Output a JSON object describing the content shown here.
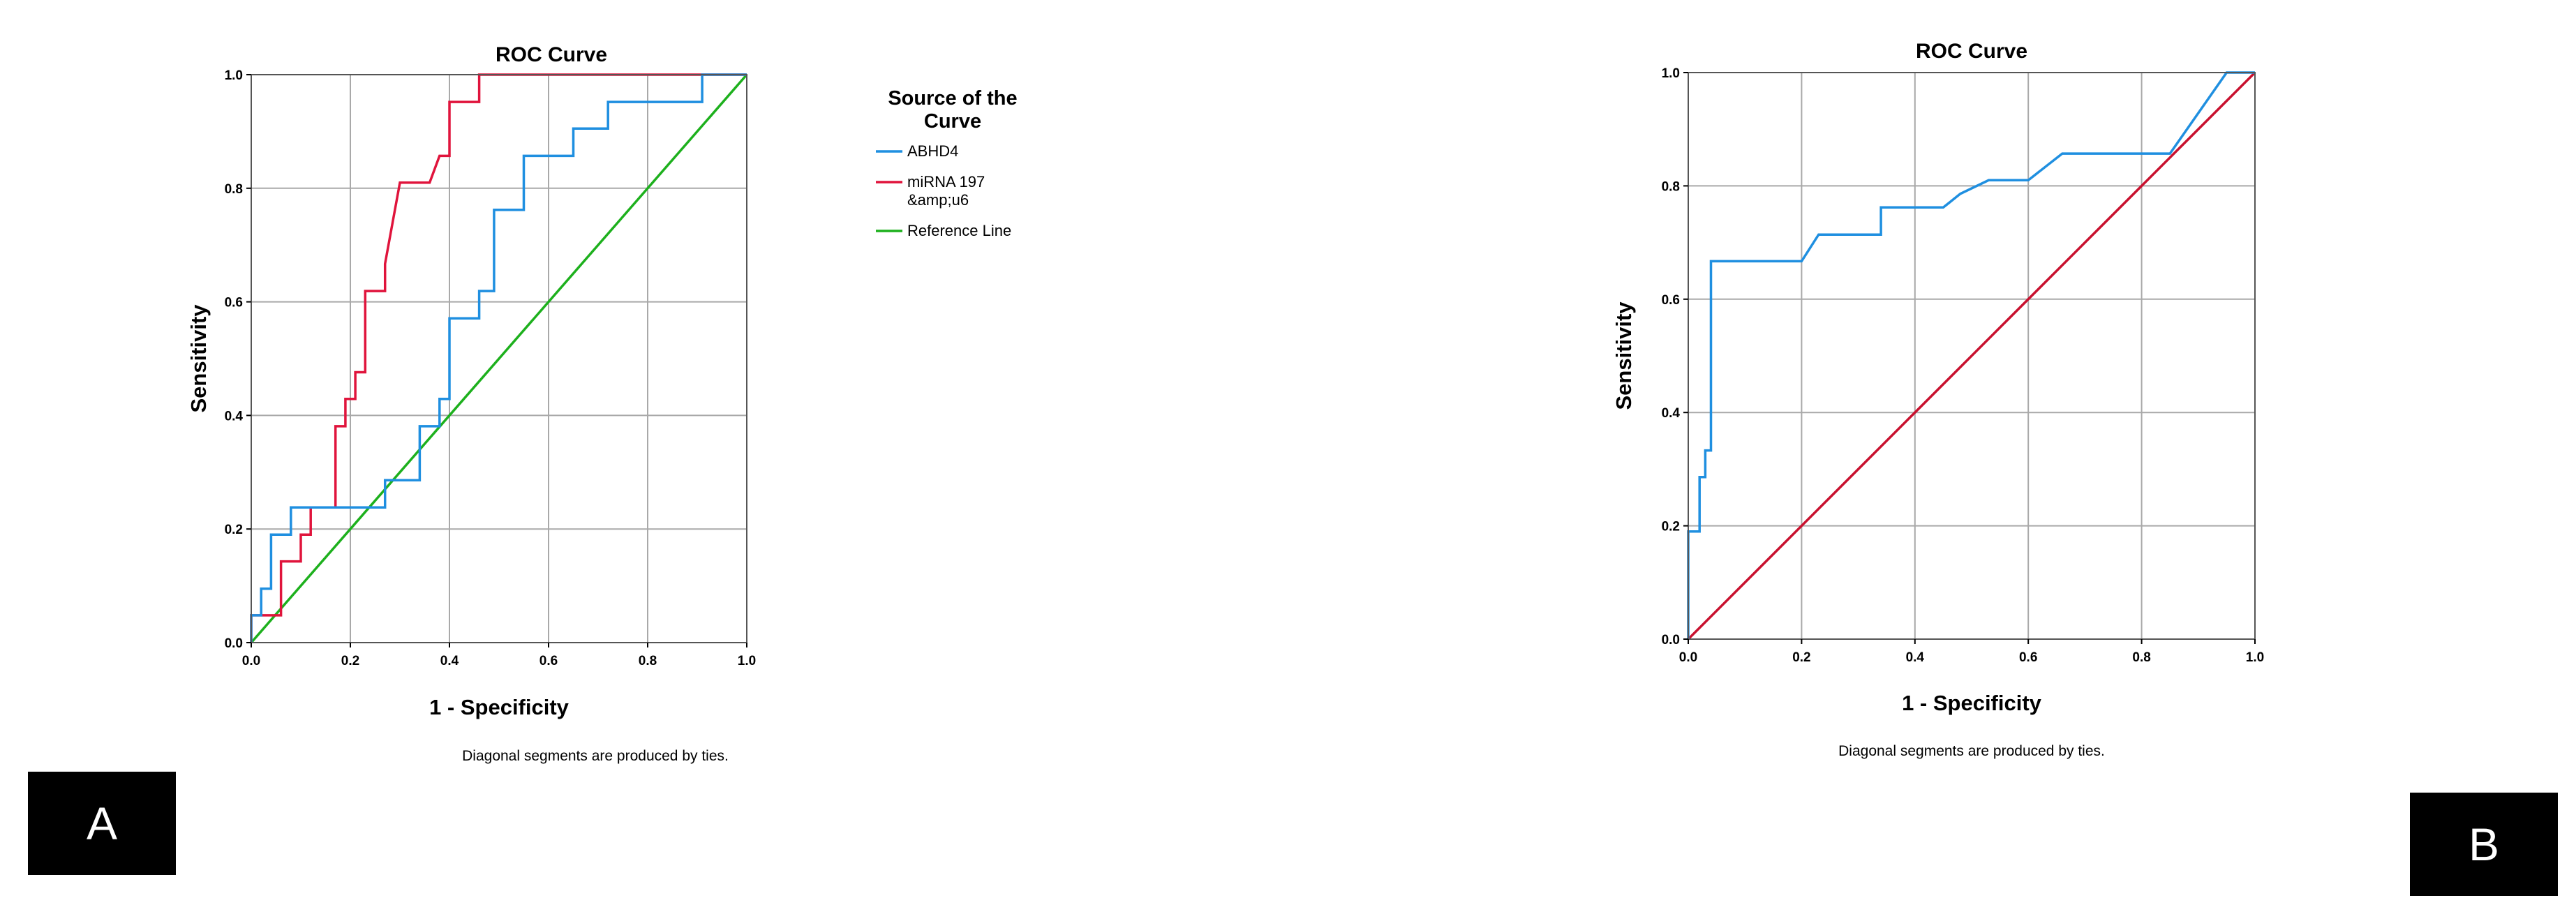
{
  "chart_data": [
    {
      "type": "line",
      "title": "ROC Curve",
      "xlabel": "1 - Specificity",
      "ylabel": "Sensitivity",
      "xlim": [
        0,
        1
      ],
      "ylim": [
        0,
        1
      ],
      "xticks": [
        "0.0",
        "0.2",
        "0.4",
        "0.6",
        "0.8",
        "1.0"
      ],
      "yticks": [
        "0.0",
        "0.2",
        "0.4",
        "0.6",
        "0.8",
        "1.0"
      ],
      "grid": true,
      "note": "Diagonal segments are produced by ties.",
      "panel_label": "A",
      "legend": {
        "title_lines": [
          "Source of the",
          "Curve"
        ],
        "position": "right"
      },
      "series": [
        {
          "name": "ABHD4",
          "label_lines": [
            "ABHD4"
          ],
          "color": "#1f8fe0",
          "points": [
            [
              0,
              0
            ],
            [
              0,
              0.048
            ],
            [
              0.02,
              0.048
            ],
            [
              0.02,
              0.095
            ],
            [
              0.04,
              0.095
            ],
            [
              0.04,
              0.19
            ],
            [
              0.08,
              0.19
            ],
            [
              0.08,
              0.238
            ],
            [
              0.27,
              0.238
            ],
            [
              0.27,
              0.286
            ],
            [
              0.34,
              0.286
            ],
            [
              0.34,
              0.381
            ],
            [
              0.38,
              0.381
            ],
            [
              0.38,
              0.429
            ],
            [
              0.4,
              0.429
            ],
            [
              0.4,
              0.571
            ],
            [
              0.46,
              0.571
            ],
            [
              0.46,
              0.619
            ],
            [
              0.49,
              0.619
            ],
            [
              0.49,
              0.762
            ],
            [
              0.55,
              0.762
            ],
            [
              0.55,
              0.857
            ],
            [
              0.65,
              0.857
            ],
            [
              0.65,
              0.905
            ],
            [
              0.72,
              0.905
            ],
            [
              0.72,
              0.952
            ],
            [
              0.91,
              0.952
            ],
            [
              0.91,
              1.0
            ],
            [
              1.0,
              1.0
            ]
          ]
        },
        {
          "name": "miRNA 197 &amp;u6",
          "label_lines": [
            "miRNA 197",
            "&amp;u6"
          ],
          "color": "#e0143c",
          "points": [
            [
              0,
              0
            ],
            [
              0,
              0.048
            ],
            [
              0.06,
              0.048
            ],
            [
              0.06,
              0.143
            ],
            [
              0.1,
              0.143
            ],
            [
              0.1,
              0.19
            ],
            [
              0.12,
              0.19
            ],
            [
              0.12,
              0.238
            ],
            [
              0.17,
              0.238
            ],
            [
              0.17,
              0.381
            ],
            [
              0.19,
              0.381
            ],
            [
              0.19,
              0.429
            ],
            [
              0.21,
              0.429
            ],
            [
              0.21,
              0.476
            ],
            [
              0.23,
              0.476
            ],
            [
              0.23,
              0.619
            ],
            [
              0.27,
              0.619
            ],
            [
              0.27,
              0.667
            ],
            [
              0.3,
              0.81
            ],
            [
              0.36,
              0.81
            ],
            [
              0.38,
              0.857
            ],
            [
              0.4,
              0.857
            ],
            [
              0.4,
              0.952
            ],
            [
              0.46,
              0.952
            ],
            [
              0.46,
              1.0
            ],
            [
              1.0,
              1.0
            ]
          ]
        },
        {
          "name": "Reference Line",
          "label_lines": [
            "Reference Line"
          ],
          "color": "#1db01d",
          "points": [
            [
              0,
              0
            ],
            [
              1,
              1
            ]
          ]
        }
      ]
    },
    {
      "type": "line",
      "title": "ROC Curve",
      "xlabel": "1 - Specificity",
      "ylabel": "Sensitivity",
      "xlim": [
        0,
        1
      ],
      "ylim": [
        0,
        1
      ],
      "xticks": [
        "0.0",
        "0.2",
        "0.4",
        "0.6",
        "0.8",
        "1.0"
      ],
      "yticks": [
        "0.0",
        "0.2",
        "0.4",
        "0.6",
        "0.8",
        "1.0"
      ],
      "grid": true,
      "note": "Diagonal segments are produced by ties.",
      "panel_label": "B",
      "series": [
        {
          "color": "#1f8fe0",
          "points": [
            [
              0,
              0
            ],
            [
              0,
              0.19
            ],
            [
              0.02,
              0.19
            ],
            [
              0.02,
              0.286
            ],
            [
              0.03,
              0.286
            ],
            [
              0.03,
              0.333
            ],
            [
              0.04,
              0.333
            ],
            [
              0.04,
              0.667
            ],
            [
              0.2,
              0.667
            ],
            [
              0.23,
              0.714
            ],
            [
              0.34,
              0.714
            ],
            [
              0.34,
              0.762
            ],
            [
              0.45,
              0.762
            ],
            [
              0.48,
              0.786
            ],
            [
              0.53,
              0.81
            ],
            [
              0.6,
              0.81
            ],
            [
              0.66,
              0.857
            ],
            [
              0.85,
              0.857
            ],
            [
              0.95,
              1.0
            ],
            [
              1.0,
              1.0
            ]
          ]
        },
        {
          "color": "#c8102e",
          "points": [
            [
              0,
              0
            ],
            [
              1,
              1
            ]
          ]
        }
      ]
    }
  ]
}
